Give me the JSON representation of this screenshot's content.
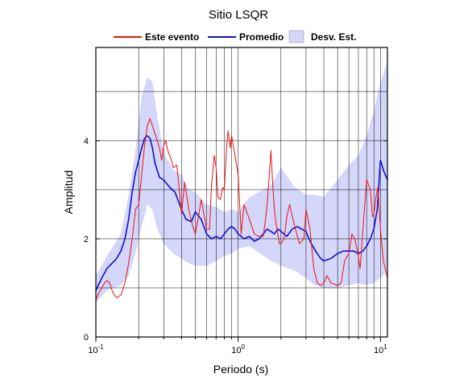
{
  "chart_data": {
    "type": "line",
    "title": "Sitio LSQR",
    "xlabel": "Periodo (s)",
    "ylabel": "Amplitud",
    "xscale": "log",
    "xlim": [
      0.1,
      11.2
    ],
    "ylim": [
      0,
      5.9
    ],
    "grid": true,
    "legend_position": "top",
    "x_ticks": [
      {
        "base": "10",
        "exp": "-1",
        "value": 0.1
      },
      {
        "base": "10",
        "exp": "0",
        "value": 1
      },
      {
        "base": "10",
        "exp": "1",
        "value": 10
      }
    ],
    "y_ticks": [
      0,
      2,
      4
    ],
    "legend": [
      {
        "label": "Este evento",
        "kind": "line",
        "color": "#ee1111"
      },
      {
        "label": "Promedio",
        "kind": "line",
        "color": "#1111cc"
      },
      {
        "label": "Desv. Est.",
        "kind": "band",
        "color": "#d4d6fa"
      }
    ],
    "band": {
      "name": "Desv. Est.",
      "x": [
        0.1,
        0.12,
        0.15,
        0.17,
        0.19,
        0.21,
        0.23,
        0.25,
        0.27,
        0.3,
        0.35,
        0.4,
        0.45,
        0.5,
        0.6,
        0.7,
        0.8,
        0.9,
        1.0,
        1.2,
        1.5,
        1.7,
        2.0,
        2.5,
        3.0,
        3.5,
        4.0,
        5.0,
        6.0,
        7.0,
        8.0,
        9.0,
        10.0,
        11.2
      ],
      "upper": [
        1.25,
        1.65,
        2.1,
        2.9,
        3.8,
        4.9,
        5.3,
        5.2,
        4.5,
        3.75,
        3.4,
        3.3,
        3.0,
        2.95,
        2.7,
        2.65,
        2.55,
        2.6,
        2.55,
        2.85,
        3.0,
        3.1,
        3.45,
        3.05,
        2.9,
        2.9,
        2.85,
        3.2,
        3.5,
        3.7,
        4.1,
        4.6,
        5.2,
        5.6
      ],
      "lower": [
        0.7,
        0.95,
        1.05,
        1.25,
        1.7,
        2.25,
        2.7,
        2.6,
        2.2,
        1.9,
        1.7,
        1.6,
        1.5,
        1.45,
        1.45,
        1.55,
        1.65,
        1.7,
        1.8,
        1.85,
        1.65,
        1.55,
        1.45,
        1.35,
        1.2,
        1.05,
        1.0,
        1.0,
        1.05,
        1.1,
        1.05,
        1.1,
        1.2,
        1.35
      ]
    },
    "series": [
      {
        "name": "Promedio",
        "color": "#1111cc",
        "x": [
          0.1,
          0.11,
          0.12,
          0.13,
          0.14,
          0.15,
          0.16,
          0.17,
          0.18,
          0.19,
          0.2,
          0.21,
          0.22,
          0.23,
          0.24,
          0.25,
          0.26,
          0.28,
          0.3,
          0.33,
          0.36,
          0.4,
          0.43,
          0.47,
          0.5,
          0.55,
          0.6,
          0.65,
          0.7,
          0.75,
          0.8,
          0.85,
          0.9,
          0.95,
          1.0,
          1.1,
          1.2,
          1.3,
          1.4,
          1.5,
          1.6,
          1.7,
          1.8,
          1.9,
          2.0,
          2.2,
          2.4,
          2.6,
          2.8,
          3.0,
          3.2,
          3.5,
          3.8,
          4.0,
          4.5,
          5.0,
          5.5,
          6.0,
          6.5,
          7.0,
          7.5,
          8.0,
          8.5,
          9.0,
          9.5,
          10.0,
          10.5,
          11.2
        ],
        "y": [
          0.95,
          1.2,
          1.4,
          1.5,
          1.6,
          1.75,
          2.0,
          2.4,
          2.95,
          3.35,
          3.6,
          3.85,
          4.05,
          4.1,
          4.05,
          3.85,
          3.55,
          3.25,
          3.2,
          3.05,
          2.95,
          2.6,
          2.4,
          2.35,
          2.55,
          2.4,
          2.1,
          2.0,
          2.05,
          2.0,
          2.1,
          2.2,
          2.25,
          2.2,
          2.1,
          2.0,
          2.05,
          1.95,
          2.0,
          2.1,
          2.2,
          2.15,
          2.1,
          2.2,
          2.15,
          2.05,
          2.2,
          2.25,
          2.2,
          2.15,
          1.95,
          1.75,
          1.6,
          1.55,
          1.6,
          1.7,
          1.75,
          1.75,
          1.75,
          1.7,
          1.75,
          1.85,
          2.0,
          2.2,
          2.6,
          3.6,
          3.4,
          3.2
        ]
      },
      {
        "name": "Este evento",
        "color": "#ee1111",
        "x": [
          0.1,
          0.105,
          0.11,
          0.115,
          0.12,
          0.125,
          0.13,
          0.135,
          0.14,
          0.15,
          0.16,
          0.17,
          0.18,
          0.19,
          0.2,
          0.21,
          0.22,
          0.23,
          0.24,
          0.25,
          0.26,
          0.27,
          0.28,
          0.29,
          0.3,
          0.31,
          0.32,
          0.33,
          0.34,
          0.35,
          0.37,
          0.38,
          0.4,
          0.42,
          0.45,
          0.48,
          0.5,
          0.53,
          0.55,
          0.58,
          0.6,
          0.63,
          0.65,
          0.68,
          0.7,
          0.72,
          0.75,
          0.78,
          0.8,
          0.83,
          0.85,
          0.88,
          0.9,
          0.95,
          1.0,
          1.05,
          1.1,
          1.2,
          1.3,
          1.4,
          1.5,
          1.55,
          1.6,
          1.65,
          1.7,
          1.75,
          1.8,
          1.85,
          1.9,
          1.95,
          2.0,
          2.1,
          2.2,
          2.3,
          2.5,
          2.7,
          2.9,
          3.0,
          3.2,
          3.4,
          3.6,
          3.8,
          4.0,
          4.2,
          4.5,
          5.0,
          5.3,
          5.6,
          6.0,
          6.3,
          6.6,
          6.9,
          7.2,
          7.5,
          8.0,
          8.5,
          8.8,
          9.0,
          9.3,
          9.6,
          10.0,
          10.5,
          11.2
        ],
        "y": [
          0.75,
          0.9,
          1.0,
          1.1,
          1.15,
          1.1,
          0.95,
          0.85,
          0.8,
          0.85,
          1.1,
          1.5,
          2.0,
          2.6,
          2.7,
          3.3,
          3.9,
          4.3,
          4.45,
          4.3,
          4.15,
          4.0,
          3.85,
          3.6,
          3.9,
          4.0,
          3.8,
          3.7,
          3.6,
          3.45,
          3.5,
          3.2,
          2.5,
          3.15,
          2.6,
          2.25,
          2.1,
          2.5,
          2.8,
          2.45,
          2.2,
          2.2,
          3.1,
          3.7,
          3.45,
          2.85,
          2.8,
          3.05,
          3.0,
          3.9,
          4.2,
          3.85,
          4.1,
          3.7,
          3.3,
          2.1,
          2.7,
          2.4,
          2.1,
          2.05,
          2.05,
          2.35,
          2.7,
          3.25,
          3.8,
          3.1,
          2.6,
          2.3,
          2.1,
          1.9,
          1.9,
          2.0,
          2.45,
          2.7,
          2.25,
          1.9,
          2.0,
          2.6,
          2.2,
          1.4,
          1.1,
          1.05,
          1.1,
          1.25,
          1.1,
          1.05,
          1.1,
          1.55,
          1.7,
          2.1,
          2.0,
          1.75,
          1.4,
          2.1,
          3.2,
          3.0,
          2.45,
          2.5,
          2.85,
          3.05,
          2.2,
          1.55,
          1.2
        ]
      }
    ]
  }
}
